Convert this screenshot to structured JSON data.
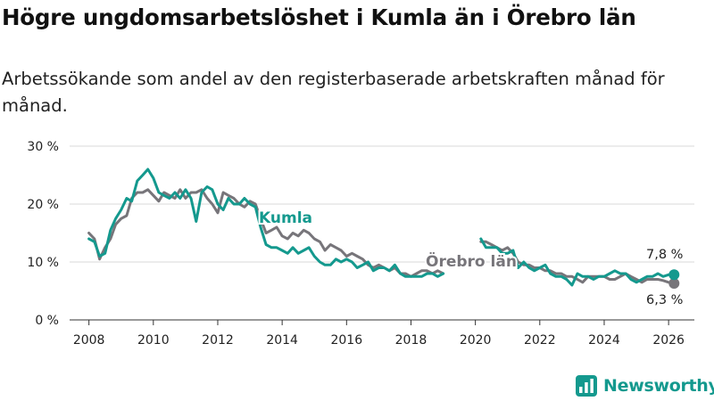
{
  "header": {
    "title": "Högre ungdomsarbetslöshet i Kumla än i Örebro län",
    "subtitle": "Arbetssökande som andel av den registerbaserade arbetskraften månad för månad."
  },
  "brand": {
    "name": "Newsworthy"
  },
  "colors": {
    "kumla": "#14998e",
    "orebro": "#77757a",
    "grid": "#d9d9d9"
  },
  "chart_data": {
    "type": "line",
    "title": "Högre ungdomsarbetslöshet i Kumla än i Örebro län",
    "xlabel": "",
    "ylabel": "",
    "xlim": [
      2007.4,
      2026.8
    ],
    "ylim": [
      0,
      30
    ],
    "x_ticks": [
      2008,
      2010,
      2012,
      2014,
      2016,
      2018,
      2020,
      2022,
      2024,
      2026
    ],
    "x_tick_labels": [
      "2008",
      "2010",
      "2012",
      "2014",
      "2016",
      "2018",
      "2020",
      "2022",
      "2024",
      "2026"
    ],
    "y_ticks": [
      0,
      10,
      20,
      30
    ],
    "y_tick_labels": [
      "0 %",
      "10 %",
      "20 %",
      "30 %"
    ],
    "grid": true,
    "series": [
      {
        "name": "Örebro län",
        "label": "Örebro län",
        "end_value_label": "6,3 %",
        "x": [
          2008.0,
          2008.17,
          2008.33,
          2008.5,
          2008.67,
          2008.83,
          2009.0,
          2009.17,
          2009.33,
          2009.5,
          2009.67,
          2009.83,
          2010.0,
          2010.17,
          2010.33,
          2010.5,
          2010.67,
          2010.83,
          2011.0,
          2011.17,
          2011.33,
          2011.5,
          2011.67,
          2011.83,
          2012.0,
          2012.17,
          2012.33,
          2012.5,
          2012.67,
          2012.83,
          2013.0,
          2013.17,
          2013.33,
          2013.5,
          2013.67,
          2013.83,
          2014.0,
          2014.17,
          2014.33,
          2014.5,
          2014.67,
          2014.83,
          2015.0,
          2015.17,
          2015.33,
          2015.5,
          2015.67,
          2015.83,
          2016.0,
          2016.17,
          2016.33,
          2016.5,
          2016.67,
          2016.83,
          2017.0,
          2017.17,
          2017.33,
          2017.5,
          2017.67,
          2017.83,
          2018.0,
          2018.17,
          2018.33,
          2018.5,
          2018.67,
          2018.83,
          2019.0,
          2019.17,
          2019.33,
          2019.5,
          2019.67,
          2019.83,
          2020.0,
          2020.17,
          2020.33,
          2020.5,
          2020.67,
          2020.83,
          2021.0,
          2021.17,
          2021.33,
          2021.5,
          2021.67,
          2021.83,
          2022.0,
          2022.17,
          2022.33,
          2022.5,
          2022.67,
          2022.83,
          2023.0,
          2023.17,
          2023.33,
          2023.5,
          2023.67,
          2023.83,
          2024.0,
          2024.17,
          2024.33,
          2024.5,
          2024.67,
          2024.83,
          2025.0,
          2025.17,
          2025.33,
          2025.5,
          2025.67,
          2025.83,
          2026.0,
          2026.17
        ],
        "values": [
          15.0,
          14.0,
          10.5,
          12.5,
          14.0,
          16.5,
          17.5,
          18.0,
          21.0,
          22.0,
          22.0,
          22.5,
          21.5,
          20.5,
          22.0,
          21.5,
          21.0,
          22.5,
          21.0,
          22.0,
          22.0,
          22.5,
          21.0,
          20.0,
          18.5,
          22.0,
          21.5,
          21.0,
          20.0,
          19.5,
          20.5,
          20.0,
          17.5,
          15.0,
          15.5,
          16.0,
          14.5,
          14.0,
          15.0,
          14.5,
          15.5,
          15.0,
          14.0,
          13.5,
          12.0,
          13.0,
          12.5,
          12.0,
          11.0,
          11.5,
          11.0,
          10.5,
          9.5,
          9.0,
          9.5,
          9.0,
          8.5,
          9.0,
          8.0,
          8.0,
          7.5,
          8.0,
          8.5,
          8.5,
          8.0,
          8.5,
          8.0,
          null,
          null,
          null,
          null,
          null,
          null,
          13.5,
          13.5,
          13.0,
          12.5,
          12.0,
          12.5,
          11.5,
          10.0,
          9.5,
          9.5,
          9.0,
          9.0,
          8.5,
          8.5,
          8.0,
          8.0,
          7.5,
          7.5,
          7.0,
          6.5,
          7.5,
          7.5,
          7.5,
          7.5,
          7.0,
          7.0,
          7.5,
          8.0,
          7.5,
          7.0,
          6.5,
          7.0,
          7.0,
          7.0,
          6.8,
          6.5,
          6.3
        ]
      },
      {
        "name": "Kumla",
        "label": "Kumla",
        "end_value_label": "7,8 %",
        "x": [
          2008.0,
          2008.17,
          2008.33,
          2008.5,
          2008.67,
          2008.83,
          2009.0,
          2009.17,
          2009.33,
          2009.5,
          2009.67,
          2009.83,
          2010.0,
          2010.17,
          2010.33,
          2010.5,
          2010.67,
          2010.83,
          2011.0,
          2011.17,
          2011.33,
          2011.5,
          2011.67,
          2011.83,
          2012.0,
          2012.17,
          2012.33,
          2012.5,
          2012.67,
          2012.83,
          2013.0,
          2013.17,
          2013.33,
          2013.5,
          2013.67,
          2013.83,
          2014.0,
          2014.17,
          2014.33,
          2014.5,
          2014.67,
          2014.83,
          2015.0,
          2015.17,
          2015.33,
          2015.5,
          2015.67,
          2015.83,
          2016.0,
          2016.17,
          2016.33,
          2016.5,
          2016.67,
          2016.83,
          2017.0,
          2017.17,
          2017.33,
          2017.5,
          2017.67,
          2017.83,
          2018.0,
          2018.17,
          2018.33,
          2018.5,
          2018.67,
          2018.83,
          2019.0,
          2019.17,
          2019.33,
          2019.5,
          2019.67,
          2019.83,
          2020.0,
          2020.17,
          2020.33,
          2020.5,
          2020.67,
          2020.83,
          2021.0,
          2021.17,
          2021.33,
          2021.5,
          2021.67,
          2021.83,
          2022.0,
          2022.17,
          2022.33,
          2022.5,
          2022.67,
          2022.83,
          2023.0,
          2023.17,
          2023.33,
          2023.5,
          2023.67,
          2023.83,
          2024.0,
          2024.17,
          2024.33,
          2024.5,
          2024.67,
          2024.83,
          2025.0,
          2025.17,
          2025.33,
          2025.5,
          2025.67,
          2025.83,
          2026.0,
          2026.17
        ],
        "values": [
          14.0,
          13.5,
          11.0,
          11.5,
          15.5,
          17.5,
          19.0,
          21.0,
          20.5,
          24.0,
          25.0,
          26.0,
          24.5,
          22.0,
          21.5,
          21.0,
          22.0,
          21.0,
          22.5,
          21.0,
          17.0,
          22.0,
          23.0,
          22.5,
          20.0,
          19.0,
          21.0,
          20.0,
          20.0,
          21.0,
          20.0,
          19.5,
          16.0,
          13.0,
          12.5,
          12.5,
          12.0,
          11.5,
          12.5,
          11.5,
          12.0,
          12.5,
          11.0,
          10.0,
          9.5,
          9.5,
          10.5,
          10.0,
          10.5,
          10.0,
          9.0,
          9.5,
          10.0,
          8.5,
          9.0,
          9.0,
          8.5,
          9.5,
          8.0,
          7.5,
          7.5,
          7.5,
          7.5,
          8.0,
          8.0,
          7.5,
          8.0,
          null,
          null,
          null,
          null,
          null,
          null,
          14.0,
          12.5,
          12.5,
          12.5,
          11.5,
          11.5,
          12.0,
          9.0,
          10.0,
          9.0,
          8.5,
          9.0,
          9.5,
          8.0,
          7.5,
          7.5,
          7.0,
          6.0,
          8.0,
          7.5,
          7.5,
          7.0,
          7.5,
          7.5,
          8.0,
          8.5,
          8.0,
          8.0,
          7.0,
          6.5,
          7.0,
          7.5,
          7.5,
          8.0,
          7.5,
          7.8,
          7.8
        ]
      }
    ]
  }
}
